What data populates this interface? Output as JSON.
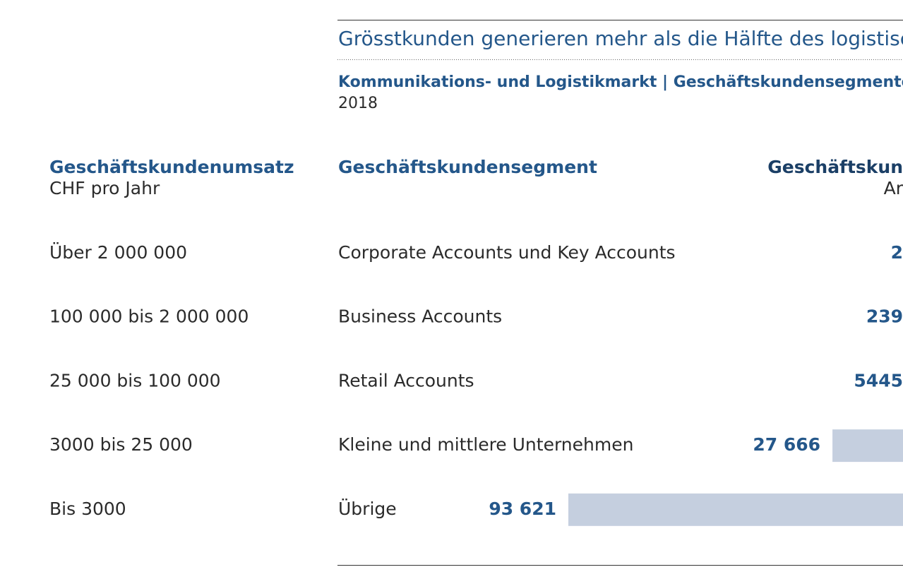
{
  "header": {
    "title": "Grösstkunden generieren mehr als die Hälfte des logistischen",
    "subtitle": "Kommunikations- und Logistikmarkt | Geschäftskundensegmente",
    "year": "2018"
  },
  "columns": {
    "revenue": "Geschäftskundenumsatz",
    "revenue_unit": "CHF pro Jahr",
    "segment": "Geschäftskundensegment",
    "count": "Geschäftskun",
    "count_unit": "Ar"
  },
  "rows": [
    {
      "revenue": "Über 2 000 000",
      "segment": "Corporate Accounts und Key Accounts",
      "count_label": "2"
    },
    {
      "revenue": "100 000 bis 2 000 000",
      "segment": "Business Accounts",
      "count_label": "239"
    },
    {
      "revenue": "25 000 bis 100 000",
      "segment": "Retail Accounts",
      "count_label": "5445"
    },
    {
      "revenue": "3000 bis 25 000",
      "segment": "Kleine und mittlere Unternehmen",
      "value": 27666,
      "value_label": "27 666"
    },
    {
      "revenue": "Bis 3000",
      "segment": "Übrige",
      "value": 93621,
      "value_label": "93 621"
    }
  ]
}
